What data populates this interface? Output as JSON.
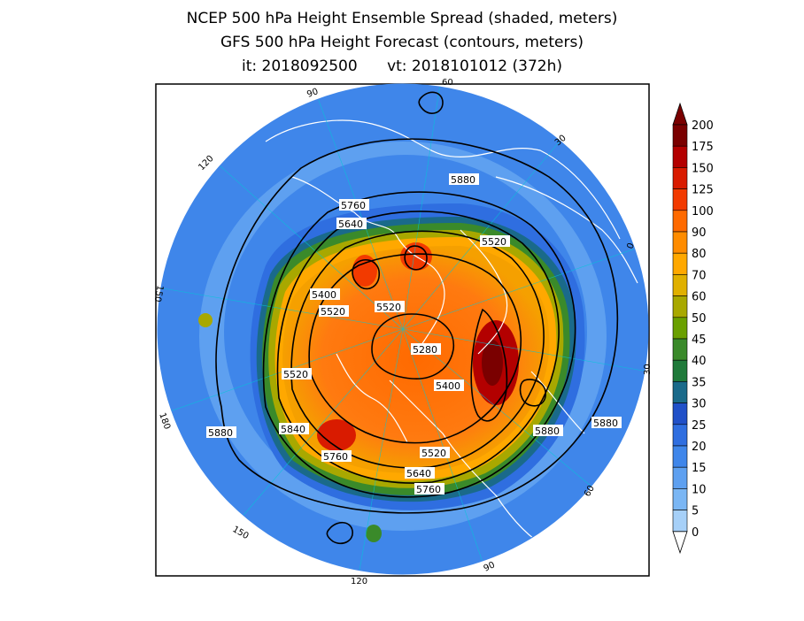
{
  "title": {
    "line1": "NCEP 500 hPa Height Ensemble Spread (shaded, meters)",
    "line2": "GFS 500 hPa Height Forecast (contours, meters)",
    "it": "it: 2018092500",
    "vt": "vt: 2018101012 (372h)"
  },
  "meridian_labels": [
    "60",
    "30",
    "0",
    "30",
    "60",
    "90",
    "120",
    "150",
    "180",
    "150",
    "120",
    "90"
  ],
  "contour_labels": [
    "5880",
    "5760",
    "5640",
    "5520",
    "5520",
    "5400",
    "5520",
    "5280",
    "5400",
    "5520",
    "5880",
    "5880",
    "5880",
    "5840",
    "5760",
    "5520",
    "5640",
    "5760"
  ],
  "colorbar": {
    "labels": [
      "200",
      "175",
      "150",
      "125",
      "100",
      "90",
      "80",
      "70",
      "60",
      "50",
      "45",
      "40",
      "35",
      "30",
      "25",
      "20",
      "15",
      "10",
      "5",
      "0"
    ],
    "colors": [
      "#7a0000",
      "#b30000",
      "#d91b00",
      "#f23a00",
      "#ff6a00",
      "#ff8c00",
      "#ffa800",
      "#e0b000",
      "#a8a800",
      "#6aa000",
      "#3a8a2a",
      "#1f7a3a",
      "#1a6a8a",
      "#2050c8",
      "#2f6ee0",
      "#3f86ea",
      "#5ea0f0",
      "#7ab6f4",
      "#a6d0f8"
    ],
    "arrow_top": "#7a0000",
    "arrow_bottom": "#ffffff"
  },
  "colors": {
    "background_ring": "#3f86ea",
    "spread_high": "#ff6a00",
    "contour": "#000000",
    "coastline": "#ffffff"
  }
}
